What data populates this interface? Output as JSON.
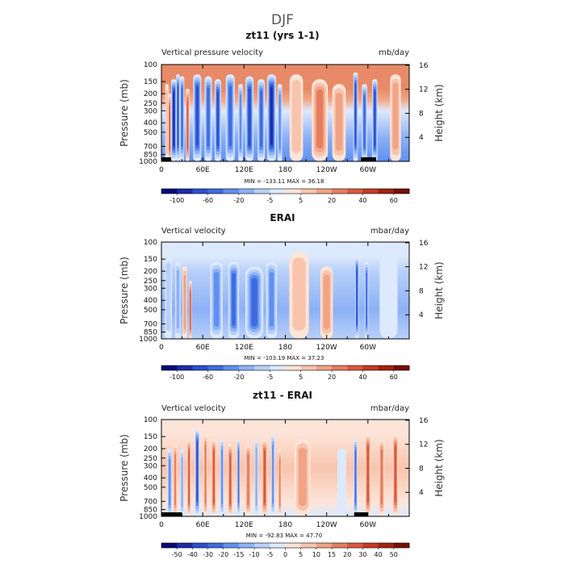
{
  "figure": {
    "title": "DJF"
  },
  "chart_data": [
    {
      "type": "heatmap",
      "title": "zt11 (yrs 1-1)",
      "left_label": "Vertical pressure velocity",
      "right_label": "mb/day",
      "ylabel": "Pressure (mb)",
      "ylabel_right": "Height (km)",
      "x_ticks": [
        {
          "lon": 0,
          "label": "0"
        },
        {
          "lon": 60,
          "label": "60E"
        },
        {
          "lon": 120,
          "label": "120E"
        },
        {
          "lon": 180,
          "label": "180"
        },
        {
          "lon": 240,
          "label": "120W"
        },
        {
          "lon": 300,
          "label": "60W"
        }
      ],
      "xlim": [
        0,
        360
      ],
      "y_ticks": [
        "100",
        "150",
        "200",
        "250",
        "300",
        "400",
        "500",
        "700",
        "850",
        "1000"
      ],
      "ylim": [
        1000,
        100
      ],
      "y_scale": "log",
      "height_ticks": [
        "4",
        "8",
        "12",
        "16"
      ],
      "stats_text": "MIN = -133.11   MAX =  36.18",
      "colorbar_labels": [
        "-100",
        "-60",
        "-20",
        "-5",
        "5",
        "20",
        "40",
        "60"
      ],
      "colorbar_colors": [
        "#08087a",
        "#1c2ba8",
        "#2c4fcf",
        "#3f6be0",
        "#5f8ff0",
        "#8db1f5",
        "#b8d0fa",
        "#dde9fd",
        "#fde4d8",
        "#f8c4ad",
        "#f1a385",
        "#e57d5f",
        "#d9583e",
        "#c53a22",
        "#a22312",
        "#7a0e05"
      ],
      "features": {
        "profiles": [
          [
            0.25,
            "#e88a68"
          ],
          [
            0.36,
            "#f2a585"
          ],
          [
            0.48,
            "#dde9fd"
          ],
          [
            0.75,
            "#8db1f5"
          ],
          [
            1.0,
            "#5f8ff0"
          ]
        ],
        "columns": [
          {
            "lon": 8,
            "w": 4,
            "rank": 9,
            "top": 0.2
          },
          {
            "lon": 12,
            "w": 3,
            "rank": 12,
            "top": 0.3
          },
          {
            "lon": 18,
            "w": 6,
            "rank": 1,
            "top": 0.15
          },
          {
            "lon": 24,
            "w": 4,
            "rank": 2,
            "top": 0.1
          },
          {
            "lon": 30,
            "w": 5,
            "rank": 3,
            "top": 0.12
          },
          {
            "lon": 38,
            "w": 4,
            "rank": 12,
            "top": 0.25
          },
          {
            "lon": 52,
            "w": 9,
            "rank": 2,
            "top": 0.1
          },
          {
            "lon": 68,
            "w": 8,
            "rank": 3,
            "top": 0.12
          },
          {
            "lon": 82,
            "w": 7,
            "rank": 2,
            "top": 0.15
          },
          {
            "lon": 100,
            "w": 10,
            "rank": 3,
            "top": 0.1
          },
          {
            "lon": 115,
            "w": 5,
            "rank": 4,
            "top": 0.2
          },
          {
            "lon": 128,
            "w": 9,
            "rank": 2,
            "top": 0.12
          },
          {
            "lon": 145,
            "w": 8,
            "rank": 3,
            "top": 0.15
          },
          {
            "lon": 160,
            "w": 10,
            "rank": 1,
            "top": 0.1
          },
          {
            "lon": 172,
            "w": 5,
            "rank": 4,
            "top": 0.2
          },
          {
            "lon": 196,
            "w": 15,
            "rank": 9,
            "top": 0.1
          },
          {
            "lon": 230,
            "w": 18,
            "rank": 11,
            "top": 0.15
          },
          {
            "lon": 258,
            "w": 15,
            "rank": 10,
            "top": 0.2
          },
          {
            "lon": 282,
            "w": 5,
            "rank": 2,
            "top": 0.08
          },
          {
            "lon": 295,
            "w": 6,
            "rank": 3,
            "top": 0.2
          },
          {
            "lon": 310,
            "w": 6,
            "rank": 2,
            "top": 0.15
          },
          {
            "lon": 340,
            "w": 12,
            "rank": 10,
            "top": 0.1
          }
        ],
        "topo": [
          [
            0,
            14
          ],
          [
            40,
            14
          ],
          [
            290,
            312
          ]
        ]
      }
    },
    {
      "type": "heatmap",
      "title": "ERAI",
      "left_label": "Vertical velocity",
      "right_label": "mbar/day",
      "ylabel": "Pressure (mb)",
      "ylabel_right": "Height (km)",
      "x_ticks": [
        {
          "lon": 0,
          "label": "0"
        },
        {
          "lon": 60,
          "label": "60E"
        },
        {
          "lon": 120,
          "label": "120E"
        },
        {
          "lon": 180,
          "label": "180"
        },
        {
          "lon": 240,
          "label": "120W"
        },
        {
          "lon": 300,
          "label": "60W"
        }
      ],
      "xlim": [
        0,
        360
      ],
      "y_ticks": [
        "100",
        "150",
        "200",
        "250",
        "300",
        "400",
        "500",
        "700",
        "850",
        "1000"
      ],
      "ylim": [
        1000,
        100
      ],
      "y_scale": "log",
      "height_ticks": [
        "4",
        "8",
        "12",
        "16"
      ],
      "stats_text": "MIN = -103.19   MAX =  37.23",
      "colorbar_labels": [
        "-100",
        "-60",
        "-20",
        "-5",
        "5",
        "20",
        "40",
        "60"
      ],
      "colorbar_colors": [
        "#08087a",
        "#1c2ba8",
        "#2c4fcf",
        "#3f6be0",
        "#5f8ff0",
        "#8db1f5",
        "#b8d0fa",
        "#dde9fd",
        "#fde4d8",
        "#f8c4ad",
        "#f1a385",
        "#e57d5f",
        "#d9583e",
        "#c53a22",
        "#a22312",
        "#7a0e05"
      ],
      "features": {
        "profiles": [
          [
            0.15,
            "#dde9fd"
          ],
          [
            0.3,
            "#b8d0fa"
          ],
          [
            0.7,
            "#8db1f5"
          ],
          [
            1.0,
            "#b8d0fa"
          ]
        ],
        "columns": [
          {
            "lon": 10,
            "w": 8,
            "rank": 6,
            "top": 0.15
          },
          {
            "lon": 24,
            "w": 6,
            "rank": 5,
            "top": 0.2
          },
          {
            "lon": 34,
            "w": 5,
            "rank": 10,
            "top": 0.25
          },
          {
            "lon": 42,
            "w": 3,
            "rank": 12,
            "top": 0.4
          },
          {
            "lon": 80,
            "w": 14,
            "rank": 4,
            "top": 0.2
          },
          {
            "lon": 105,
            "w": 12,
            "rank": 3,
            "top": 0.2
          },
          {
            "lon": 135,
            "w": 20,
            "rank": 3,
            "top": 0.25
          },
          {
            "lon": 160,
            "w": 12,
            "rank": 4,
            "top": 0.2
          },
          {
            "lon": 200,
            "w": 22,
            "rank": 9,
            "top": 0.1
          },
          {
            "lon": 240,
            "w": 14,
            "rank": 10,
            "top": 0.25
          },
          {
            "lon": 284,
            "w": 4,
            "rank": 2,
            "top": 0.15
          },
          {
            "lon": 298,
            "w": 4,
            "rank": 3,
            "top": 0.2
          },
          {
            "lon": 330,
            "w": 20,
            "rank": 7,
            "top": 0.1
          }
        ],
        "topo": []
      }
    },
    {
      "type": "heatmap",
      "title": "zt11 - ERAI",
      "left_label": "Vertical velocity",
      "right_label": "mbar/day",
      "ylabel": "Pressure (mb)",
      "ylabel_right": "Height (km)",
      "x_ticks": [
        {
          "lon": 0,
          "label": "0"
        },
        {
          "lon": 60,
          "label": "60E"
        },
        {
          "lon": 120,
          "label": "120E"
        },
        {
          "lon": 180,
          "label": "180"
        },
        {
          "lon": 240,
          "label": "120W"
        },
        {
          "lon": 300,
          "label": "60W"
        }
      ],
      "xlim": [
        0,
        360
      ],
      "y_ticks": [
        "100",
        "150",
        "200",
        "250",
        "300",
        "400",
        "500",
        "700",
        "850",
        "1000"
      ],
      "ylim": [
        1000,
        100
      ],
      "y_scale": "log",
      "height_ticks": [
        "4",
        "8",
        "12",
        "16"
      ],
      "stats_text": "MIN =  -92.83   MAX =  47.70",
      "colorbar_labels": [
        "-50",
        "-40",
        "-30",
        "-20",
        "-15",
        "-10",
        "-5",
        "0",
        "5",
        "10",
        "15",
        "20",
        "30",
        "40",
        "50"
      ],
      "colorbar_colors": [
        "#08087a",
        "#1c2ba8",
        "#2c4fcf",
        "#3f6be0",
        "#5f8ff0",
        "#8db1f5",
        "#b8d0fa",
        "#dde9fd",
        "#fde4d8",
        "#f8c4ad",
        "#f1a385",
        "#e57d5f",
        "#d9583e",
        "#c53a22",
        "#a22312",
        "#7a0e05"
      ],
      "features": {
        "profiles": [
          [
            0.15,
            "#fde4d8"
          ],
          [
            0.5,
            "#f8c4ad"
          ],
          [
            0.85,
            "#fde4d8"
          ],
          [
            1.0,
            "#dde9fd"
          ]
        ],
        "columns": [
          {
            "lon": 12,
            "w": 5,
            "rank": 4,
            "top": 0.3
          },
          {
            "lon": 20,
            "w": 4,
            "rank": 11,
            "top": 0.25
          },
          {
            "lon": 30,
            "w": 4,
            "rank": 5,
            "top": 0.3
          },
          {
            "lon": 40,
            "w": 4,
            "rank": 12,
            "top": 0.2
          },
          {
            "lon": 52,
            "w": 5,
            "rank": 2,
            "top": 0.1
          },
          {
            "lon": 64,
            "w": 4,
            "rank": 11,
            "top": 0.15
          },
          {
            "lon": 76,
            "w": 5,
            "rank": 12,
            "top": 0.2
          },
          {
            "lon": 88,
            "w": 4,
            "rank": 4,
            "top": 0.2
          },
          {
            "lon": 100,
            "w": 5,
            "rank": 12,
            "top": 0.25
          },
          {
            "lon": 112,
            "w": 3,
            "rank": 3,
            "top": 0.2
          },
          {
            "lon": 126,
            "w": 6,
            "rank": 11,
            "top": 0.25
          },
          {
            "lon": 138,
            "w": 4,
            "rank": 5,
            "top": 0.2
          },
          {
            "lon": 150,
            "w": 6,
            "rank": 12,
            "top": 0.2
          },
          {
            "lon": 162,
            "w": 4,
            "rank": 4,
            "top": 0.15
          },
          {
            "lon": 172,
            "w": 3,
            "rank": 11,
            "top": 0.3
          },
          {
            "lon": 205,
            "w": 18,
            "rank": 10,
            "top": 0.2
          },
          {
            "lon": 262,
            "w": 10,
            "rank": 7,
            "top": 0.3
          },
          {
            "lon": 282,
            "w": 4,
            "rank": 3,
            "top": 0.2
          },
          {
            "lon": 300,
            "w": 6,
            "rank": 12,
            "top": 0.15
          },
          {
            "lon": 320,
            "w": 6,
            "rank": 11,
            "top": 0.2
          },
          {
            "lon": 340,
            "w": 6,
            "rank": 12,
            "top": 0.15
          }
        ],
        "topo": [
          [
            0,
            30
          ],
          [
            280,
            300
          ]
        ]
      }
    }
  ]
}
